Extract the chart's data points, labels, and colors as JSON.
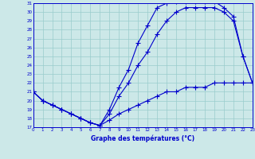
{
  "xlabel": "Graphe des températures (°C)",
  "bg_color": "#cce8e8",
  "line_color": "#0000cc",
  "grid_color": "#99cccc",
  "xmin": 0,
  "xmax": 23,
  "ymin": 17,
  "ymax": 31,
  "yticks": [
    17,
    18,
    19,
    20,
    21,
    22,
    23,
    24,
    25,
    26,
    27,
    28,
    29,
    30,
    31
  ],
  "xticks": [
    0,
    1,
    2,
    3,
    4,
    5,
    6,
    7,
    8,
    9,
    10,
    11,
    12,
    13,
    14,
    15,
    16,
    17,
    18,
    19,
    20,
    21,
    22,
    23
  ],
  "line1_x": [
    0,
    1,
    2,
    3,
    4,
    5,
    6,
    7,
    8,
    9,
    10,
    11,
    12,
    13,
    14,
    15,
    16,
    17,
    18,
    19,
    20,
    21,
    22,
    23
  ],
  "line1_y": [
    21.0,
    20.0,
    19.5,
    19.0,
    18.5,
    18.0,
    17.5,
    17.2,
    19.0,
    21.5,
    23.5,
    26.5,
    28.5,
    30.5,
    31.0,
    31.2,
    31.2,
    31.2,
    31.2,
    31.2,
    30.5,
    29.5,
    25.0,
    22.0
  ],
  "line2_x": [
    0,
    1,
    2,
    3,
    4,
    5,
    6,
    7,
    8,
    9,
    10,
    11,
    12,
    13,
    14,
    15,
    16,
    17,
    18,
    19,
    20,
    21,
    22,
    23
  ],
  "line2_y": [
    21.0,
    20.0,
    19.5,
    19.0,
    18.5,
    18.0,
    17.5,
    17.2,
    18.5,
    20.5,
    22.0,
    24.0,
    25.5,
    27.5,
    29.0,
    30.0,
    30.5,
    30.5,
    30.5,
    30.5,
    30.0,
    29.0,
    25.0,
    22.0
  ],
  "line3_x": [
    0,
    1,
    2,
    3,
    4,
    5,
    6,
    7,
    8,
    9,
    10,
    11,
    12,
    13,
    14,
    15,
    16,
    17,
    18,
    19,
    20,
    21,
    22,
    23
  ],
  "line3_y": [
    21.0,
    20.0,
    19.5,
    19.0,
    18.5,
    18.0,
    17.5,
    17.2,
    17.8,
    18.5,
    19.0,
    19.5,
    20.0,
    20.5,
    21.0,
    21.0,
    21.5,
    21.5,
    21.5,
    22.0,
    22.0,
    22.0,
    22.0,
    22.0
  ]
}
